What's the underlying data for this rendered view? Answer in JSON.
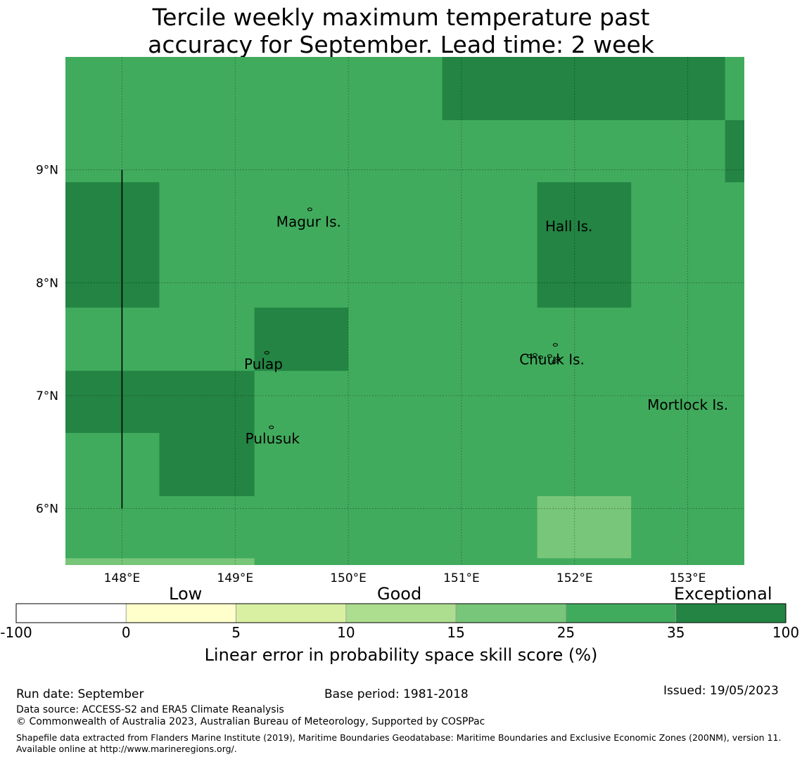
{
  "chart_data": {
    "type": "heatmap",
    "title_line1": "Tercile weekly maximum temperature past",
    "title_line2": "accuracy for September. Lead time: 2 week",
    "projection": "map",
    "lon_range": [
      147.5,
      153.5
    ],
    "lat_range": [
      5.5,
      10.0
    ],
    "x_ticks": [
      {
        "value": 148,
        "label": "148°E"
      },
      {
        "value": 149,
        "label": "149°E"
      },
      {
        "value": 150,
        "label": "150°E"
      },
      {
        "value": 151,
        "label": "151°E"
      },
      {
        "value": 152,
        "label": "152°E"
      },
      {
        "value": 153,
        "label": "153°E"
      }
    ],
    "y_ticks": [
      {
        "value": 9,
        "label": "9°N"
      },
      {
        "value": 8,
        "label": "8°N"
      },
      {
        "value": 7,
        "label": "7°N"
      },
      {
        "value": 6,
        "label": "6°N"
      }
    ],
    "background_category": "25-35",
    "cells": [
      {
        "lon": [
          150.83,
          153.33
        ],
        "lat": [
          9.44,
          10.0
        ],
        "category": "35-100"
      },
      {
        "lon": [
          153.33,
          153.5
        ],
        "lat": [
          8.89,
          9.44
        ],
        "category": "35-100"
      },
      {
        "lon": [
          147.5,
          148.33
        ],
        "lat": [
          7.78,
          8.89
        ],
        "category": "35-100"
      },
      {
        "lon": [
          151.67,
          152.5
        ],
        "lat": [
          7.78,
          8.89
        ],
        "category": "35-100"
      },
      {
        "lon": [
          149.17,
          150.0
        ],
        "lat": [
          7.22,
          7.78
        ],
        "category": "35-100"
      },
      {
        "lon": [
          147.5,
          149.17
        ],
        "lat": [
          6.67,
          7.22
        ],
        "category": "35-100"
      },
      {
        "lon": [
          148.33,
          149.17
        ],
        "lat": [
          6.11,
          6.67
        ],
        "category": "35-100"
      },
      {
        "lon": [
          151.67,
          152.5
        ],
        "lat": [
          5.56,
          6.11
        ],
        "category": "15-25"
      },
      {
        "lon": [
          147.5,
          149.17
        ],
        "lat": [
          5.5,
          5.56
        ],
        "category": "15-25"
      }
    ],
    "boundary_line": {
      "lon": 148.0,
      "lat": [
        6.0,
        9.0
      ]
    },
    "places": [
      {
        "name": "Magur Is.",
        "lon": 149.65,
        "lat": 8.62
      },
      {
        "name": "Hall Is.",
        "lon": 151.95,
        "lat": 8.58
      },
      {
        "name": "Pulap",
        "lon": 149.25,
        "lat": 7.36
      },
      {
        "name": "Chuuk Is.",
        "lon": 151.8,
        "lat": 7.4
      },
      {
        "name": "Mortlock Is.",
        "lon": 153.0,
        "lat": 7.0
      },
      {
        "name": "Pulusuk",
        "lon": 149.33,
        "lat": 6.7
      }
    ],
    "colorbar": {
      "categories": [
        {
          "range": "-100-0",
          "color": "#ffffff"
        },
        {
          "range": "0-5",
          "color": "#ffffcc"
        },
        {
          "range": "5-10",
          "color": "#d9f0a3"
        },
        {
          "range": "10-15",
          "color": "#addd8e"
        },
        {
          "range": "15-25",
          "color": "#78c679"
        },
        {
          "range": "25-35",
          "color": "#41ab5d"
        },
        {
          "range": "35-100",
          "color": "#238443"
        }
      ],
      "tick_labels": [
        "-100",
        "0",
        "5",
        "10",
        "15",
        "25",
        "35",
        "100"
      ],
      "category_labels": [
        "Low",
        "Good",
        "Exceptional"
      ],
      "label": "Linear error in probability space skill score (%)"
    }
  },
  "footer": {
    "run_date": "Run date: September",
    "base_period": "Base period: 1981-2018",
    "issued": "Issued: 19/05/2023",
    "data_source": "Data source: ACCESS-S2 and ERA5 Climate Reanalysis",
    "copyright": "© Commonwealth of Australia 2023, Australian Bureau of Meteorology, Supported by COSPPac",
    "shapefile_credit": "Shapefile data extracted from Flanders Marine Institute (2019), Maritime Boundaries Geodatabase: Maritime Boundaries and Exclusive Economic Zones (200NM), version 11. Available online at http://www.marineregions.org/."
  }
}
